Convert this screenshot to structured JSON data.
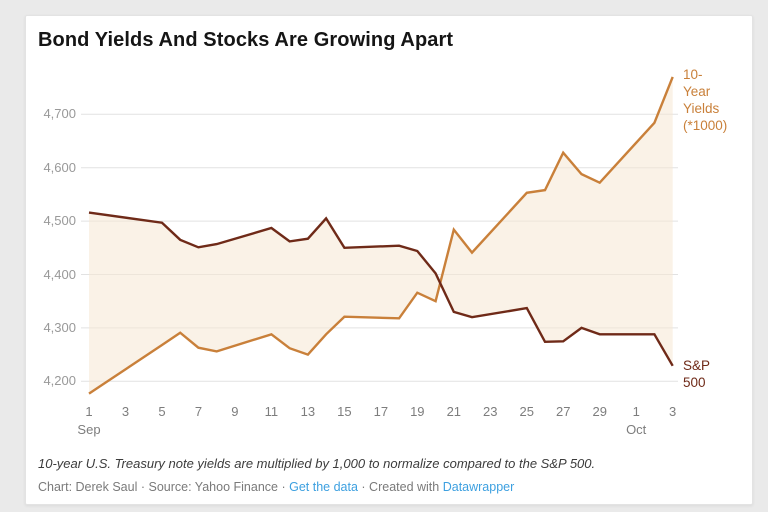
{
  "page": {
    "background": "#eaeaea",
    "card_background": "#ffffff"
  },
  "header": {
    "title": "Bond Yields And Stocks Are Growing Apart"
  },
  "chart_data": {
    "type": "line",
    "title": "Bond Yields And Stocks Are Growing Apart",
    "xlabel": "",
    "ylabel": "",
    "grid": "horizontal",
    "gridline_color": "#e2e2e2",
    "fill_between_color": "#f6e7d4",
    "x": [
      "Sep 1",
      "Sep 5",
      "Sep 6",
      "Sep 7",
      "Sep 8",
      "Sep 11",
      "Sep 12",
      "Sep 13",
      "Sep 14",
      "Sep 15",
      "Sep 18",
      "Sep 19",
      "Sep 20",
      "Sep 21",
      "Sep 22",
      "Sep 25",
      "Sep 26",
      "Sep 27",
      "Sep 28",
      "Sep 29",
      "Oct 2",
      "Oct 3"
    ],
    "x_day_offsets": [
      0,
      4,
      5,
      6,
      7,
      10,
      11,
      12,
      13,
      14,
      17,
      18,
      19,
      20,
      21,
      24,
      25,
      26,
      27,
      28,
      31,
      32
    ],
    "series": [
      {
        "name": "10-Year Yields (*1000)",
        "label_lines": [
          "10-",
          "Year",
          "Yields",
          "(*1000)"
        ],
        "color": "#c9803a",
        "values": [
          4177,
          4268,
          4291,
          4263,
          4256,
          4288,
          4262,
          4250,
          4288,
          4321,
          4318,
          4366,
          4350,
          4484,
          4441,
          4553,
          4558,
          4628,
          4588,
          4572,
          4684,
          4770
        ]
      },
      {
        "name": "S&P 500",
        "label_lines": [
          "S&P",
          "500"
        ],
        "color": "#6f2a18",
        "values": [
          4516,
          4497,
          4465,
          4451,
          4457,
          4487,
          4462,
          4467,
          4505,
          4450,
          4454,
          4444,
          4402,
          4330,
          4320,
          4337,
          4274,
          4275,
          4300,
          4288,
          4288,
          4229
        ]
      }
    ],
    "ylim": [
      4150,
      4800
    ],
    "y_ticks": [
      4200,
      4300,
      4400,
      4500,
      4600,
      4700
    ],
    "y_tick_labels": [
      "4,200",
      "4,300",
      "4,400",
      "4,500",
      "4,600",
      "4,700"
    ],
    "x_ticks": [
      {
        "label": "1",
        "day": 0,
        "month": "Sep"
      },
      {
        "label": "3",
        "day": 2
      },
      {
        "label": "5",
        "day": 4
      },
      {
        "label": "7",
        "day": 6
      },
      {
        "label": "9",
        "day": 8
      },
      {
        "label": "11",
        "day": 10
      },
      {
        "label": "13",
        "day": 12
      },
      {
        "label": "15",
        "day": 14
      },
      {
        "label": "17",
        "day": 16
      },
      {
        "label": "19",
        "day": 18
      },
      {
        "label": "21",
        "day": 20
      },
      {
        "label": "23",
        "day": 22
      },
      {
        "label": "25",
        "day": 24
      },
      {
        "label": "27",
        "day": 26
      },
      {
        "label": "29",
        "day": 28
      },
      {
        "label": "1",
        "day": 30,
        "month": "Oct"
      },
      {
        "label": "3",
        "day": 32
      }
    ],
    "legend_position": "direct-right"
  },
  "footer": {
    "note": "10-year U.S. Treasury note yields are multiplied by 1,000 to normalize compared to the S&P 500.",
    "credits_chart": "Chart: Derek Saul",
    "credits_source": "Source: Yahoo Finance",
    "link_get_data": "Get the data",
    "credits_created": "Created with",
    "link_datawrapper": "Datawrapper",
    "separator": "·",
    "link_color": "#3da0e0"
  }
}
